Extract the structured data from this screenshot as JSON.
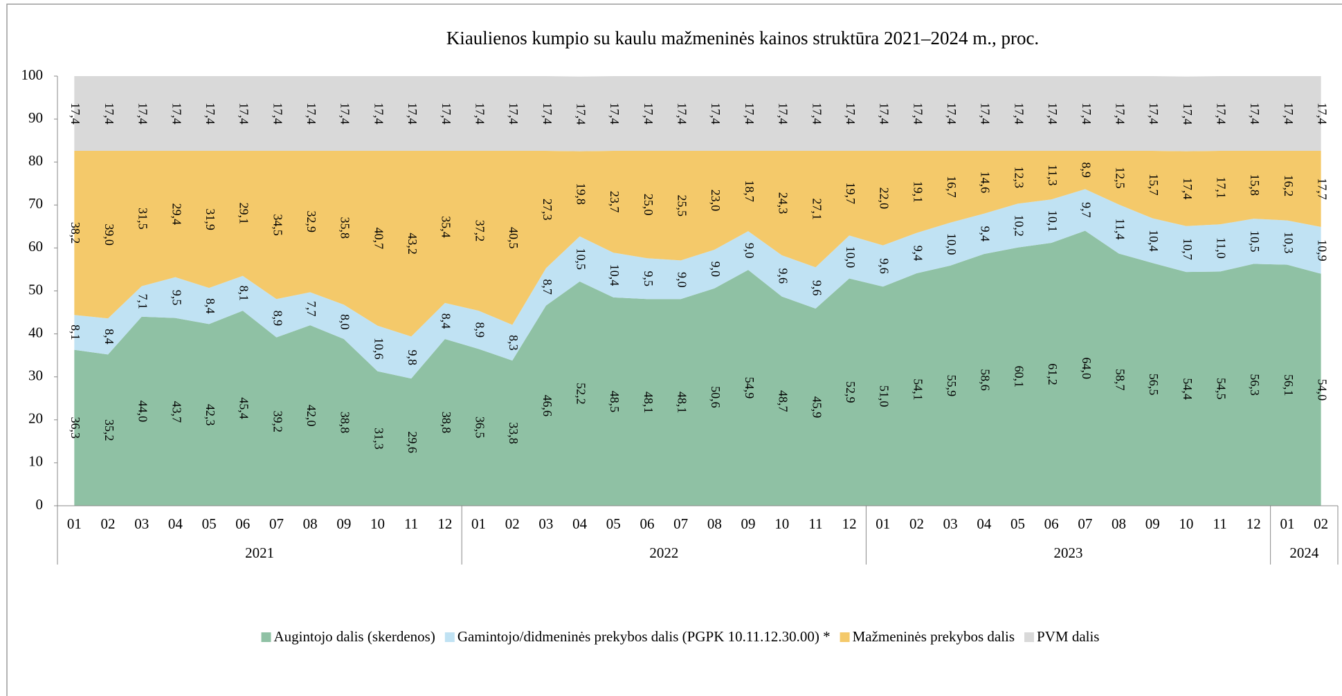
{
  "chart_data": {
    "type": "stacked_area",
    "title": "Kiaulienos kumpio su kaulu mažmeninės kainos struktūra 2021–2024 m., proc.",
    "category_groups": [
      {
        "label": "2021",
        "categories": [
          "01",
          "02",
          "03",
          "04",
          "05",
          "06",
          "07",
          "08",
          "09",
          "10",
          "11",
          "12"
        ]
      },
      {
        "label": "2022",
        "categories": [
          "01",
          "02",
          "03",
          "04",
          "05",
          "06",
          "07",
          "08",
          "09",
          "10",
          "11",
          "12"
        ]
      },
      {
        "label": "2023",
        "categories": [
          "01",
          "02",
          "03",
          "04",
          "05",
          "06",
          "07",
          "08",
          "09",
          "10",
          "11",
          "12"
        ]
      },
      {
        "label": "2024",
        "categories": [
          "01",
          "02"
        ]
      }
    ],
    "ylim": [
      0,
      100
    ],
    "yticks": [
      0,
      10,
      20,
      30,
      40,
      50,
      60,
      70,
      80,
      90,
      100
    ],
    "legend": "bottom",
    "series": [
      {
        "name": "Augintojo dalis (skerdenos)",
        "color": "#8fc1a4",
        "values": [
          36.3,
          35.2,
          44.0,
          43.7,
          42.3,
          45.4,
          39.2,
          42.0,
          38.8,
          31.3,
          29.6,
          38.8,
          36.5,
          33.8,
          46.6,
          52.2,
          48.5,
          48.1,
          48.1,
          50.6,
          54.9,
          48.7,
          45.9,
          52.9,
          51.0,
          54.1,
          55.9,
          58.6,
          60.1,
          61.2,
          64.0,
          58.7,
          56.5,
          54.4,
          54.5,
          56.3,
          56.1,
          54.0
        ],
        "value_labels": [
          "36,3",
          "35,2",
          "44,0",
          "43,7",
          "42,3",
          "45,4",
          "39,2",
          "42,0",
          "38,8",
          "31,3",
          "29,6",
          "38,8",
          "36,5",
          "33,8",
          "46,6",
          "52,2",
          "48,5",
          "48,1",
          "48,1",
          "50,6",
          "54,9",
          "48,7",
          "45,9",
          "52,9",
          "51,0",
          "54,1",
          "55,9",
          "58,6",
          "60,1",
          "61,2",
          "64,0",
          "58,7",
          "56,5",
          "54,4",
          "54,5",
          "56,3",
          "56,1",
          "54,0"
        ]
      },
      {
        "name": "Gamintojo/didmeninės prekybos dalis (PGPK 10.11.12.30.00) *",
        "color": "#c0e2f3",
        "values": [
          8.1,
          8.4,
          7.1,
          9.5,
          8.4,
          8.1,
          8.9,
          7.7,
          8.0,
          10.6,
          9.8,
          8.4,
          8.9,
          8.3,
          8.7,
          10.5,
          10.4,
          9.5,
          9.0,
          9.0,
          9.0,
          9.6,
          9.6,
          10.0,
          9.6,
          9.4,
          10.0,
          9.4,
          10.2,
          10.1,
          9.7,
          11.4,
          10.4,
          10.7,
          11.0,
          10.5,
          10.3,
          10.9
        ],
        "value_labels": [
          "8,1",
          "8,4",
          "7,1",
          "9,5",
          "8,4",
          "8,1",
          "8,9",
          "7,7",
          "8,0",
          "10,6",
          "9,8",
          "8,4",
          "8,9",
          "8,3",
          "8,7",
          "10,5",
          "10,4",
          "9,5",
          "9,0",
          "9,0",
          "9,0",
          "9,6",
          "9,6",
          "10,0",
          "9,6",
          "9,4",
          "10,0",
          "9,4",
          "10,2",
          "10,1",
          "9,7",
          "11,4",
          "10,4",
          "10,7",
          "11,0",
          "10,5",
          "10,3",
          "10,9"
        ]
      },
      {
        "name": "Mažmeninės prekybos dalis",
        "color": "#f4c96a",
        "values": [
          38.2,
          39.0,
          31.5,
          29.4,
          31.9,
          29.1,
          34.5,
          32.9,
          35.8,
          40.7,
          43.2,
          35.4,
          37.2,
          40.5,
          27.3,
          19.8,
          23.7,
          25.0,
          25.5,
          23.0,
          18.7,
          24.3,
          27.1,
          19.7,
          22.0,
          19.1,
          16.7,
          14.6,
          12.3,
          11.3,
          8.9,
          12.5,
          15.7,
          17.4,
          17.1,
          15.8,
          16.2,
          17.7
        ],
        "value_labels": [
          "38,2",
          "39,0",
          "31,5",
          "29,4",
          "31,9",
          "29,1",
          "34,5",
          "32,9",
          "35,8",
          "40,7",
          "43,2",
          "35,4",
          "37,2",
          "40,5",
          "27,3",
          "19,8",
          "23,7",
          "25,0",
          "25,5",
          "23,0",
          "18,7",
          "24,3",
          "27,1",
          "19,7",
          "22,0",
          "19,1",
          "16,7",
          "14,6",
          "12,3",
          "11,3",
          "8,9",
          "12,5",
          "15,7",
          "17,4",
          "17,1",
          "15,8",
          "16,2",
          "17,7"
        ]
      },
      {
        "name": "PVM dalis",
        "color": "#d9d9d9",
        "values": [
          17.4,
          17.4,
          17.4,
          17.4,
          17.4,
          17.4,
          17.4,
          17.4,
          17.4,
          17.4,
          17.4,
          17.4,
          17.4,
          17.4,
          17.4,
          17.4,
          17.4,
          17.4,
          17.4,
          17.4,
          17.4,
          17.4,
          17.4,
          17.4,
          17.4,
          17.4,
          17.4,
          17.4,
          17.4,
          17.4,
          17.4,
          17.4,
          17.4,
          17.4,
          17.4,
          17.4,
          17.4,
          17.4
        ],
        "value_labels": [
          "17,4",
          "17,4",
          "17,4",
          "17,4",
          "17,4",
          "17,4",
          "17,4",
          "17,4",
          "17,4",
          "17,4",
          "17,4",
          "17,4",
          "17,4",
          "17,4",
          "17,4",
          "17,4",
          "17,4",
          "17,4",
          "17,4",
          "17,4",
          "17,4",
          "17,4",
          "17,4",
          "17,4",
          "17,4",
          "17,4",
          "17,4",
          "17,4",
          "17,4",
          "17,4",
          "17,4",
          "17,4",
          "17,4",
          "17,4",
          "17,4",
          "17,4",
          "17,4",
          "17,4"
        ]
      }
    ]
  }
}
